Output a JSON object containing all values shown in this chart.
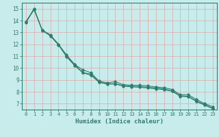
{
  "xlabel": "Humidex (Indice chaleur)",
  "bg_color": "#c8ecec",
  "grid_color": "#ddb0b0",
  "line_color": "#2e7d6e",
  "xlim": [
    -0.5,
    23.5
  ],
  "ylim": [
    6.5,
    15.5
  ],
  "xticks": [
    0,
    1,
    2,
    3,
    4,
    5,
    6,
    7,
    8,
    9,
    10,
    11,
    12,
    13,
    14,
    15,
    16,
    17,
    18,
    19,
    20,
    21,
    22,
    23
  ],
  "yticks": [
    7,
    8,
    9,
    10,
    11,
    12,
    13,
    14,
    15
  ],
  "series": [
    [
      13.9,
      15.0,
      13.2,
      12.8,
      12.0,
      11.1,
      10.3,
      9.85,
      9.6,
      8.9,
      8.75,
      8.85,
      8.6,
      8.55,
      8.55,
      8.5,
      8.4,
      8.35,
      8.2,
      7.75,
      7.75,
      7.35,
      7.0,
      6.75
    ],
    [
      13.9,
      14.9,
      13.2,
      12.7,
      11.95,
      10.95,
      10.2,
      9.6,
      9.4,
      8.8,
      8.65,
      8.65,
      8.48,
      8.42,
      8.38,
      8.32,
      8.25,
      8.18,
      8.05,
      7.62,
      7.58,
      7.18,
      6.88,
      6.58
    ],
    [
      13.8,
      15.0,
      13.15,
      12.75,
      12.0,
      11.02,
      10.28,
      9.62,
      9.48,
      8.82,
      8.68,
      8.68,
      8.52,
      8.46,
      8.44,
      8.38,
      8.32,
      8.24,
      8.08,
      7.66,
      7.62,
      7.22,
      6.92,
      6.62
    ]
  ]
}
